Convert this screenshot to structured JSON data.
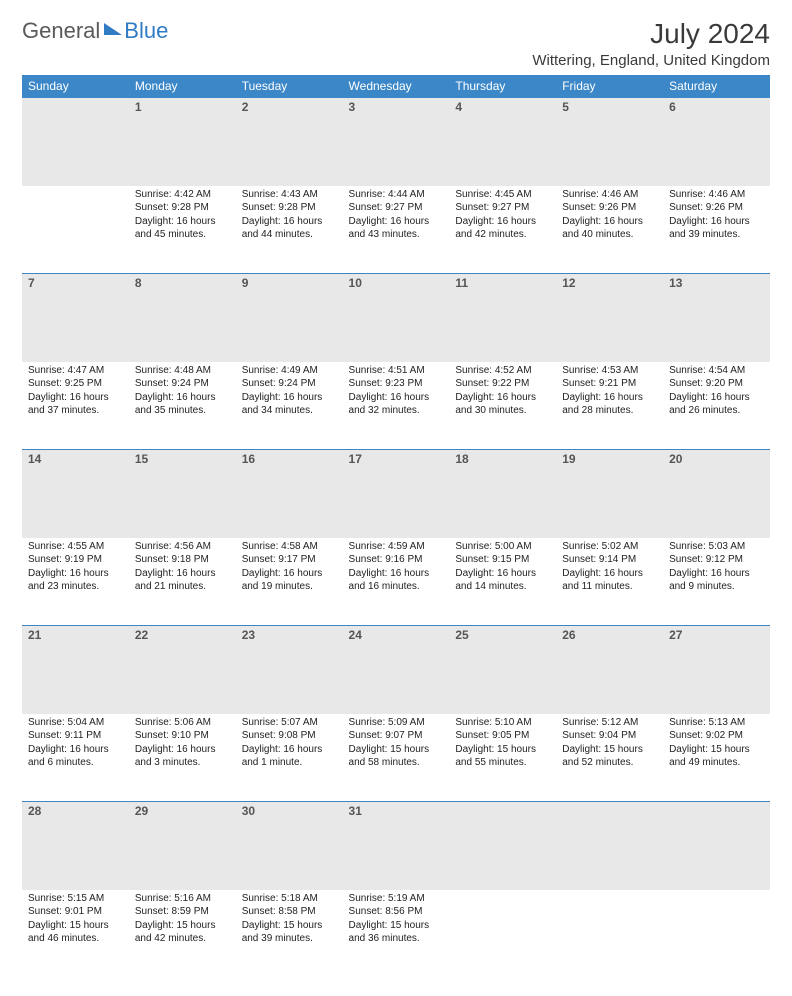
{
  "logo": {
    "general": "General",
    "blue": "Blue"
  },
  "header": {
    "month_year": "July 2024",
    "location": "Wittering, England, United Kingdom"
  },
  "colors": {
    "header_bg": "#3b87c8",
    "header_text": "#ffffff",
    "daynum_bg": "#e8e8e8",
    "daynum_text": "#555555",
    "body_text": "#222222",
    "rule": "#3b87c8",
    "logo_gray": "#5a5a5a",
    "logo_blue": "#2f7bc4",
    "page_bg": "#ffffff"
  },
  "typography": {
    "month_year_fontsize": 28,
    "location_fontsize": 15,
    "weekday_fontsize": 12,
    "daynum_fontsize": 12,
    "cell_fontsize": 10,
    "font_family": "Arial"
  },
  "weekdays": [
    "Sunday",
    "Monday",
    "Tuesday",
    "Wednesday",
    "Thursday",
    "Friday",
    "Saturday"
  ],
  "weeks": [
    [
      null,
      {
        "n": "1",
        "sunrise": "4:42 AM",
        "sunset": "9:28 PM",
        "daylight": "16 hours and 45 minutes."
      },
      {
        "n": "2",
        "sunrise": "4:43 AM",
        "sunset": "9:28 PM",
        "daylight": "16 hours and 44 minutes."
      },
      {
        "n": "3",
        "sunrise": "4:44 AM",
        "sunset": "9:27 PM",
        "daylight": "16 hours and 43 minutes."
      },
      {
        "n": "4",
        "sunrise": "4:45 AM",
        "sunset": "9:27 PM",
        "daylight": "16 hours and 42 minutes."
      },
      {
        "n": "5",
        "sunrise": "4:46 AM",
        "sunset": "9:26 PM",
        "daylight": "16 hours and 40 minutes."
      },
      {
        "n": "6",
        "sunrise": "4:46 AM",
        "sunset": "9:26 PM",
        "daylight": "16 hours and 39 minutes."
      }
    ],
    [
      {
        "n": "7",
        "sunrise": "4:47 AM",
        "sunset": "9:25 PM",
        "daylight": "16 hours and 37 minutes."
      },
      {
        "n": "8",
        "sunrise": "4:48 AM",
        "sunset": "9:24 PM",
        "daylight": "16 hours and 35 minutes."
      },
      {
        "n": "9",
        "sunrise": "4:49 AM",
        "sunset": "9:24 PM",
        "daylight": "16 hours and 34 minutes."
      },
      {
        "n": "10",
        "sunrise": "4:51 AM",
        "sunset": "9:23 PM",
        "daylight": "16 hours and 32 minutes."
      },
      {
        "n": "11",
        "sunrise": "4:52 AM",
        "sunset": "9:22 PM",
        "daylight": "16 hours and 30 minutes."
      },
      {
        "n": "12",
        "sunrise": "4:53 AM",
        "sunset": "9:21 PM",
        "daylight": "16 hours and 28 minutes."
      },
      {
        "n": "13",
        "sunrise": "4:54 AM",
        "sunset": "9:20 PM",
        "daylight": "16 hours and 26 minutes."
      }
    ],
    [
      {
        "n": "14",
        "sunrise": "4:55 AM",
        "sunset": "9:19 PM",
        "daylight": "16 hours and 23 minutes."
      },
      {
        "n": "15",
        "sunrise": "4:56 AM",
        "sunset": "9:18 PM",
        "daylight": "16 hours and 21 minutes."
      },
      {
        "n": "16",
        "sunrise": "4:58 AM",
        "sunset": "9:17 PM",
        "daylight": "16 hours and 19 minutes."
      },
      {
        "n": "17",
        "sunrise": "4:59 AM",
        "sunset": "9:16 PM",
        "daylight": "16 hours and 16 minutes."
      },
      {
        "n": "18",
        "sunrise": "5:00 AM",
        "sunset": "9:15 PM",
        "daylight": "16 hours and 14 minutes."
      },
      {
        "n": "19",
        "sunrise": "5:02 AM",
        "sunset": "9:14 PM",
        "daylight": "16 hours and 11 minutes."
      },
      {
        "n": "20",
        "sunrise": "5:03 AM",
        "sunset": "9:12 PM",
        "daylight": "16 hours and 9 minutes."
      }
    ],
    [
      {
        "n": "21",
        "sunrise": "5:04 AM",
        "sunset": "9:11 PM",
        "daylight": "16 hours and 6 minutes."
      },
      {
        "n": "22",
        "sunrise": "5:06 AM",
        "sunset": "9:10 PM",
        "daylight": "16 hours and 3 minutes."
      },
      {
        "n": "23",
        "sunrise": "5:07 AM",
        "sunset": "9:08 PM",
        "daylight": "16 hours and 1 minute."
      },
      {
        "n": "24",
        "sunrise": "5:09 AM",
        "sunset": "9:07 PM",
        "daylight": "15 hours and 58 minutes."
      },
      {
        "n": "25",
        "sunrise": "5:10 AM",
        "sunset": "9:05 PM",
        "daylight": "15 hours and 55 minutes."
      },
      {
        "n": "26",
        "sunrise": "5:12 AM",
        "sunset": "9:04 PM",
        "daylight": "15 hours and 52 minutes."
      },
      {
        "n": "27",
        "sunrise": "5:13 AM",
        "sunset": "9:02 PM",
        "daylight": "15 hours and 49 minutes."
      }
    ],
    [
      {
        "n": "28",
        "sunrise": "5:15 AM",
        "sunset": "9:01 PM",
        "daylight": "15 hours and 46 minutes."
      },
      {
        "n": "29",
        "sunrise": "5:16 AM",
        "sunset": "8:59 PM",
        "daylight": "15 hours and 42 minutes."
      },
      {
        "n": "30",
        "sunrise": "5:18 AM",
        "sunset": "8:58 PM",
        "daylight": "15 hours and 39 minutes."
      },
      {
        "n": "31",
        "sunrise": "5:19 AM",
        "sunset": "8:56 PM",
        "daylight": "15 hours and 36 minutes."
      },
      null,
      null,
      null
    ]
  ],
  "labels": {
    "sunrise": "Sunrise:",
    "sunset": "Sunset:",
    "daylight": "Daylight:"
  }
}
